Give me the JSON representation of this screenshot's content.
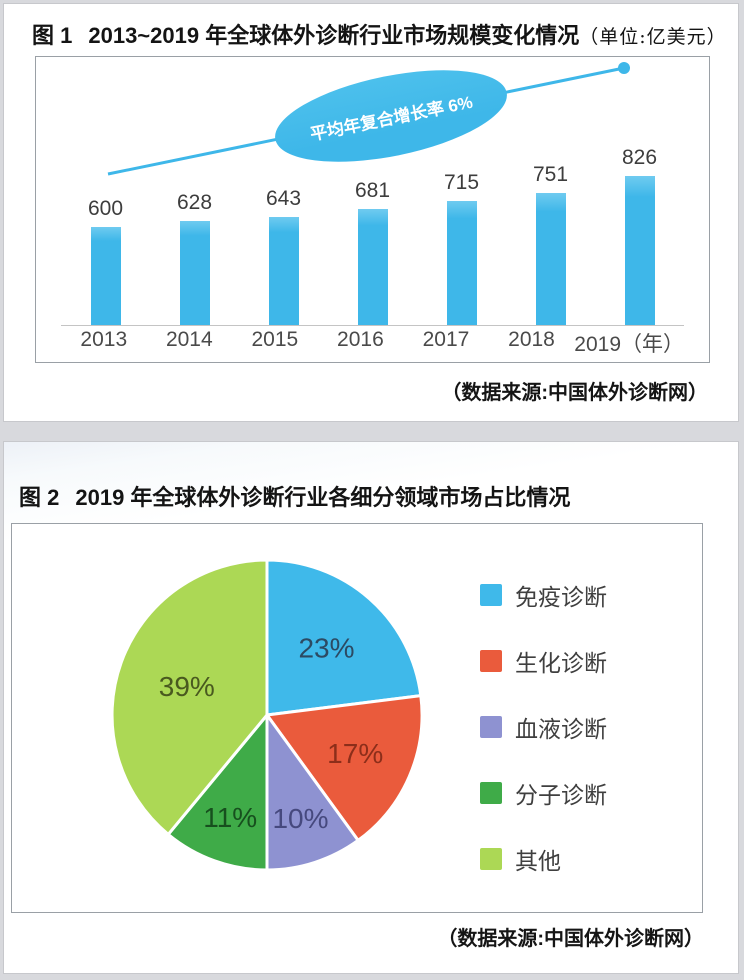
{
  "figure1": {
    "title_prefix": "图 1",
    "title": "2013~2019 年全球体外诊断行业市场规模变化情况",
    "unit_note": "（单位:亿美元）",
    "growth_annotation": "平均年复合增长率 6%",
    "source": "（数据来源:中国体外诊断网）"
  },
  "figure2": {
    "title_prefix": "图 2",
    "title": "2019 年全球体外诊断行业各细分领域市场占比情况",
    "source": "（数据来源:中国体外诊断网）"
  },
  "colors": {
    "accent_blue": "#3EB7E9",
    "axis_gray": "#c4c4c4",
    "page_background": "#d8d9dd"
  },
  "chart_data": [
    {
      "type": "bar",
      "title": "2013~2019 年全球体外诊断行业市场规模变化情况",
      "unit": "亿美元",
      "categories": [
        "2013",
        "2014",
        "2015",
        "2016",
        "2017",
        "2018",
        "2019（年）"
      ],
      "values": [
        600,
        628,
        643,
        681,
        715,
        751,
        826
      ],
      "bar_color": "#3EB7E9",
      "value_labels_shown": true,
      "grid": false,
      "trend_line": true,
      "annotation": "平均年复合增长率 6%",
      "annotation_shape": "ellipse",
      "source": "（数据来源:中国体外诊断网）"
    },
    {
      "type": "pie",
      "title": "2019 年全球体外诊断行业各细分领域市场占比情况",
      "labels": [
        "免疫诊断",
        "生化诊断",
        "血液诊断",
        "分子诊断",
        "其他"
      ],
      "values": [
        23,
        17,
        10,
        11,
        39
      ],
      "unit": "%",
      "colors": [
        "#3FB9EA",
        "#EA5B3C",
        "#8E92D1",
        "#3FAB48",
        "#ACD855"
      ],
      "label_colors": [
        "#2C4A63",
        "#8C2E1A",
        "#46497E",
        "#174F1E",
        "#49591F"
      ],
      "start_angle_deg": 0,
      "direction": "clockwise",
      "legend_position": "right",
      "source": "（数据来源:中国体外诊断网）"
    }
  ]
}
